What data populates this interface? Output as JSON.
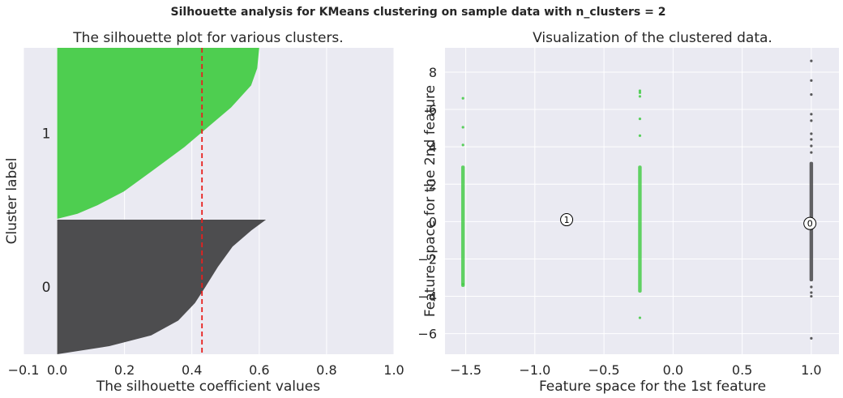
{
  "suptitle": "Silhouette analysis for KMeans clustering on sample data with n_clusters = 2",
  "colors": {
    "panel_bg": "#eaeaf2",
    "grid": "#ffffff",
    "cluster_0": "#474749",
    "cluster_1": "#48cc4a",
    "avg_line": "#e8201e",
    "text": "#262626"
  },
  "chart_data": [
    {
      "type": "area",
      "title": "The silhouette plot for various clusters.",
      "xlabel": "The silhouette coefficient values",
      "ylabel": "Cluster label",
      "xlim": [
        -0.1,
        1.0
      ],
      "xticks": [
        -0.1,
        0.0,
        0.2,
        0.4,
        0.6,
        0.8,
        1.0
      ],
      "xtick_labels": [
        "−0.1",
        "0.0",
        "0.2",
        "0.4",
        "0.6",
        "0.8",
        "1.0"
      ],
      "silhouette_avg": 0.43,
      "clusters": [
        {
          "label": "0",
          "max": 0.62,
          "min": 0.0
        },
        {
          "label": "1",
          "max": 0.6,
          "min": 0.0
        }
      ],
      "grid": true
    },
    {
      "type": "scatter",
      "title": "Visualization of the clustered data.",
      "xlabel": "Feature space for the 1st feature",
      "ylabel": "Feature space for the 2nd feature",
      "xlim": [
        -1.65,
        1.2
      ],
      "ylim": [
        -7.1,
        9.3
      ],
      "xticks": [
        -1.5,
        -1.0,
        -0.5,
        0.0,
        0.5,
        1.0
      ],
      "xtick_labels": [
        "−1.5",
        "−1.0",
        "−0.5",
        "0.0",
        "0.5",
        "1.0"
      ],
      "yticks": [
        -6,
        -4,
        -2,
        0,
        2,
        4,
        6,
        8
      ],
      "ytick_labels": [
        "−6",
        "−4",
        "−2",
        "0",
        "2",
        "4",
        "6",
        "8"
      ],
      "series": [
        {
          "cluster": "1",
          "x": -1.52,
          "y_range": [
            -3.5,
            3.0
          ],
          "outliers": [
            6.6,
            5.05,
            4.1,
            -3.35
          ]
        },
        {
          "cluster": "1",
          "x": -0.24,
          "y_range": [
            -3.8,
            3.0
          ],
          "outliers": [
            7.0,
            6.9,
            6.7,
            5.5,
            4.6,
            -5.15
          ]
        },
        {
          "cluster": "0",
          "x": 1.0,
          "y_range": [
            -3.2,
            3.2
          ],
          "outliers": [
            8.6,
            7.55,
            6.8,
            5.75,
            5.4,
            4.7,
            4.4,
            4.05,
            3.7,
            -3.5,
            -3.8,
            -4.0,
            -6.25
          ]
        }
      ],
      "centers": [
        {
          "label": "0",
          "x": 0.99,
          "y": -0.1
        },
        {
          "label": "1",
          "x": -0.77,
          "y": 0.1
        }
      ],
      "grid": true
    }
  ]
}
